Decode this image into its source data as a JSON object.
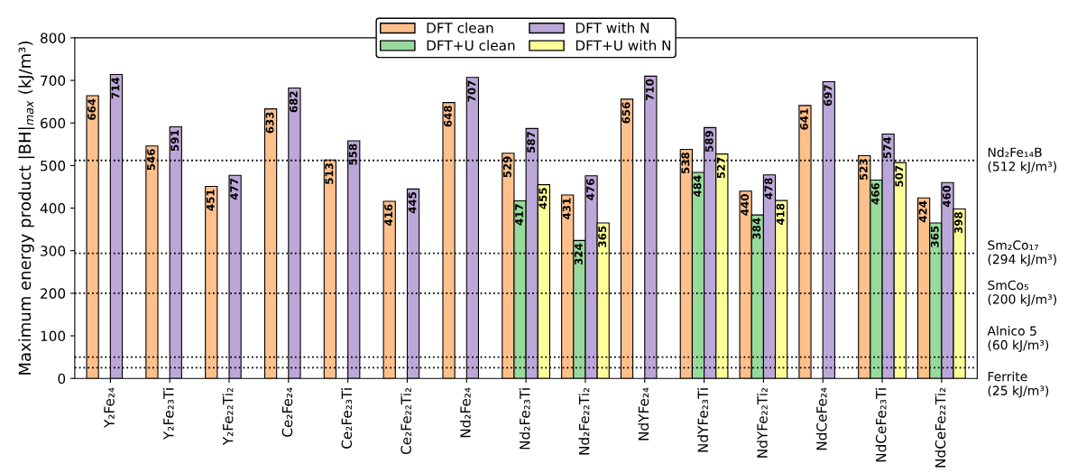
{
  "chart_data": {
    "type": "bar",
    "ylabel": "Maximum energy product |BH|$_{max}$ (kJ/m³)",
    "categories": [
      "Y₂Fe₂₄",
      "Y₂Fe₂₃Ti",
      "Y₂Fe₂₂Ti₂",
      "Ce₂Fe₂₄",
      "Ce₂Fe₂₃Ti",
      "Ce₂Fe₂₂Ti₂",
      "Nd₂Fe₂₄",
      "Nd₂Fe₂₃Ti",
      "Nd₂Fe₂₂Ti₂",
      "NdYFe₂₄",
      "NdYFe₂₃Ti",
      "NdYFe₂₂Ti₂",
      "NdCeFe₂₄",
      "NdCeFe₂₃Ti",
      "NdCeFe₂₂Ti₂"
    ],
    "series": [
      {
        "name": "DFT clean",
        "color": "#ffc08c",
        "values": [
          664,
          546,
          451,
          633,
          513,
          416,
          648,
          529,
          431,
          656,
          538,
          440,
          641,
          523,
          424
        ]
      },
      {
        "name": "DFT+U clean",
        "color": "#98d99c",
        "values": [
          null,
          null,
          null,
          null,
          null,
          null,
          null,
          417,
          324,
          null,
          484,
          384,
          null,
          466,
          365
        ]
      },
      {
        "name": "DFT with N",
        "color": "#bba8d8",
        "values": [
          714,
          591,
          477,
          682,
          558,
          445,
          707,
          587,
          476,
          710,
          589,
          478,
          697,
          574,
          460
        ]
      },
      {
        "name": "DFT+U with N",
        "color": "#ffff99",
        "values": [
          null,
          null,
          null,
          null,
          null,
          null,
          null,
          455,
          365,
          null,
          527,
          418,
          null,
          507,
          398
        ]
      }
    ],
    "ylim": [
      0,
      800
    ],
    "yticks": [
      0,
      100,
      200,
      300,
      400,
      500,
      600,
      700,
      800
    ],
    "ref_lines": [
      {
        "axis": "y",
        "value": 512,
        "label": "Nd₂Fe₁₄B\n(512 kJ/m³)",
        "line_style": "dotted",
        "color": "#000000"
      },
      {
        "axis": "y",
        "value": 294,
        "label": "Sm₂Co₁₇\n(294 kJ/m³)",
        "line_style": "dotted",
        "color": "#000000"
      },
      {
        "axis": "y",
        "value": 200,
        "label": "SmCo₅\n(200 kJ/m³)",
        "line_style": "dotted",
        "color": "#000000"
      },
      {
        "axis": "y",
        "value": 50,
        "label": "Alnico 5\n(60 kJ/m³)",
        "line_style": "dotted",
        "color": "#000000"
      },
      {
        "axis": "y",
        "value": 25,
        "label": "Ferrite\n(25 kJ/m³)",
        "line_style": "dotted",
        "color": "#000000"
      }
    ],
    "data_labels": true,
    "legend": "top",
    "grid": false
  }
}
